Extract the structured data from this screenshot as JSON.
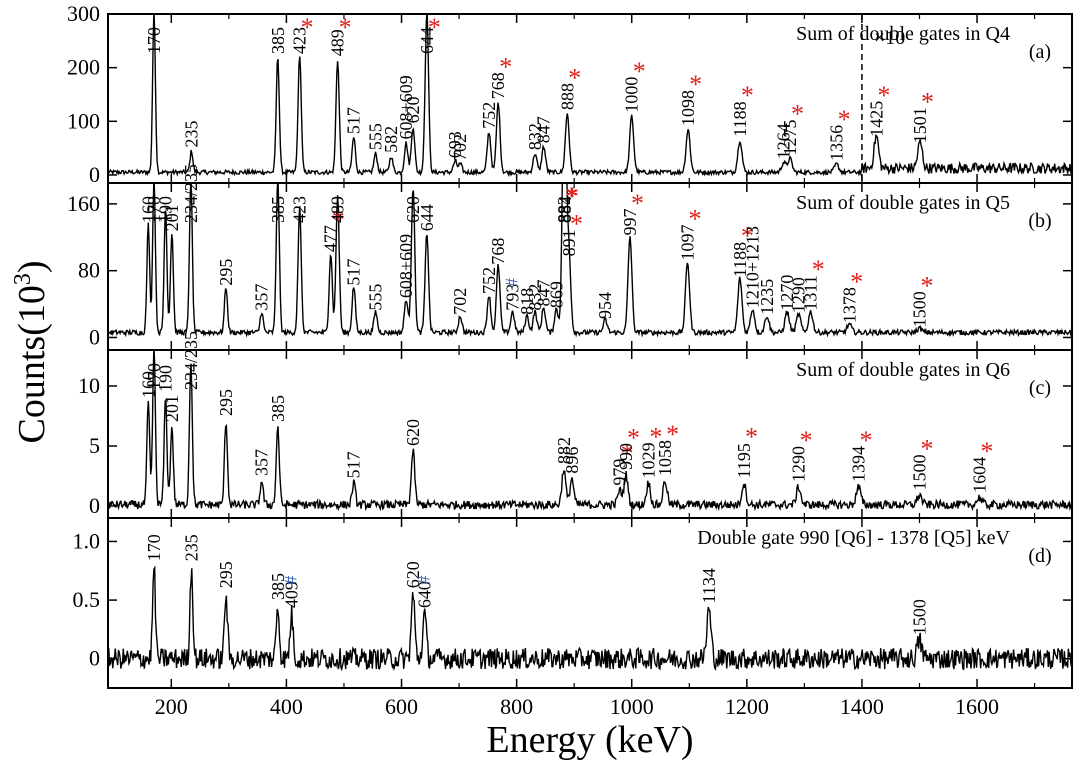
{
  "figure": {
    "xlabel": "Energy (keV)",
    "ylabel": "Counts(10",
    "ylabel_exp": "3",
    "ylabel_close": ")",
    "marker_star": "*",
    "marker_hash": "#",
    "colors": {
      "line": "#000000",
      "star": "#e0201b",
      "hash": "#3a63b8"
    }
  },
  "chart_data": [
    {
      "type": "line",
      "title": "Sum of double gates in Q4",
      "tag": "(a)",
      "xlim": [
        90,
        1765
      ],
      "ylim": [
        -15,
        300
      ],
      "xticks": [
        200,
        400,
        600,
        800,
        1000,
        1200,
        1400,
        1600
      ],
      "yticks": [
        0,
        100,
        200,
        300
      ],
      "ytick_labels": [
        "0",
        "100",
        "200",
        "300"
      ],
      "xtick_labels": [
        "",
        "",
        "",
        "",
        "",
        "",
        "",
        ""
      ],
      "baseline": 5,
      "noise": 4,
      "divider_x": 1400,
      "divider_label": "×10",
      "extra_lines": [],
      "peaks": [
        {
          "x": 170,
          "y": 300,
          "label": "170"
        },
        {
          "x": 235,
          "y": 40,
          "label": "235"
        },
        {
          "x": 385,
          "y": 215,
          "label": "385"
        },
        {
          "x": 423,
          "y": 220,
          "label": "423",
          "star": true
        },
        {
          "x": 489,
          "y": 210,
          "label": "489",
          "star": true
        },
        {
          "x": 517,
          "y": 65,
          "label": "517"
        },
        {
          "x": 555,
          "y": 35,
          "label": "555"
        },
        {
          "x": 582,
          "y": 30,
          "label": "582"
        },
        {
          "x": 608,
          "y": 55,
          "label": "608+609"
        },
        {
          "x": 620,
          "y": 85,
          "label": "620"
        },
        {
          "x": 644,
          "y": 300,
          "label": "644",
          "star": true
        },
        {
          "x": 693,
          "y": 20,
          "label": "693"
        },
        {
          "x": 702,
          "y": 15,
          "label": "702"
        },
        {
          "x": 752,
          "y": 75,
          "label": "752"
        },
        {
          "x": 768,
          "y": 130,
          "label": "768",
          "star": true
        },
        {
          "x": 832,
          "y": 35,
          "label": "832"
        },
        {
          "x": 847,
          "y": 48,
          "label": "847"
        },
        {
          "x": 888,
          "y": 110,
          "label": "888",
          "star": true
        },
        {
          "x": 1000,
          "y": 105,
          "label": "1000",
          "star": true
        },
        {
          "x": 1098,
          "y": 80,
          "label": "1098",
          "star": true
        },
        {
          "x": 1188,
          "y": 60,
          "label": "1188",
          "star": true
        },
        {
          "x": 1264,
          "y": 18,
          "label": "1264"
        },
        {
          "x": 1275,
          "y": 25,
          "label": "1275",
          "star": true
        },
        {
          "x": 1356,
          "y": 15,
          "label": "1356",
          "star": true
        },
        {
          "x": 1425,
          "y": 60,
          "label": "1425",
          "star": true
        },
        {
          "x": 1501,
          "y": 48,
          "label": "1501",
          "star": true
        }
      ]
    },
    {
      "type": "line",
      "title": "Sum of double gates in Q5",
      "tag": "(b)",
      "xlim": [
        90,
        1765
      ],
      "ylim": [
        -15,
        185
      ],
      "xticks": [
        200,
        400,
        600,
        800,
        1000,
        1200,
        1400,
        1600
      ],
      "yticks": [
        0,
        80,
        160
      ],
      "ytick_labels": [
        "0",
        "80",
        "160"
      ],
      "xtick_labels": [
        "",
        "",
        "",
        "",
        "",
        "",
        "",
        ""
      ],
      "baseline": 6,
      "noise": 3,
      "extra_lines": [],
      "peaks": [
        {
          "x": 160,
          "y": 130,
          "label": "160"
        },
        {
          "x": 170,
          "y": 185,
          "label": "170"
        },
        {
          "x": 190,
          "y": 150,
          "label": "190"
        },
        {
          "x": 201,
          "y": 120,
          "label": "201"
        },
        {
          "x": 234,
          "y": 185,
          "label": "234/235"
        },
        {
          "x": 295,
          "y": 55,
          "label": "295"
        },
        {
          "x": 357,
          "y": 25,
          "label": "357"
        },
        {
          "x": 385,
          "y": 185,
          "label": "385"
        },
        {
          "x": 423,
          "y": 150,
          "label": "423"
        },
        {
          "x": 477,
          "y": 95,
          "label": "477",
          "star": true
        },
        {
          "x": 489,
          "y": 165,
          "label": "489"
        },
        {
          "x": 517,
          "y": 55,
          "label": "517"
        },
        {
          "x": 555,
          "y": 25,
          "label": "555"
        },
        {
          "x": 608,
          "y": 40,
          "label": "608+609"
        },
        {
          "x": 620,
          "y": 175,
          "label": "620"
        },
        {
          "x": 644,
          "y": 120,
          "label": "644"
        },
        {
          "x": 702,
          "y": 20,
          "label": "702"
        },
        {
          "x": 752,
          "y": 45,
          "label": "752"
        },
        {
          "x": 768,
          "y": 80,
          "label": "768"
        },
        {
          "x": 793,
          "y": 25,
          "label": "793",
          "hash": true
        },
        {
          "x": 818,
          "y": 20,
          "label": "818"
        },
        {
          "x": 832,
          "y": 25,
          "label": "832"
        },
        {
          "x": 847,
          "y": 30,
          "label": "847"
        },
        {
          "x": 869,
          "y": 28,
          "label": "869"
        },
        {
          "x": 882,
          "y": 165,
          "label": "882",
          "star": true
        },
        {
          "x": 884,
          "y": 150,
          "label": "884",
          "star": true
        },
        {
          "x": 891,
          "y": 90,
          "label": "891",
          "star": true
        },
        {
          "x": 954,
          "y": 15,
          "label": "954"
        },
        {
          "x": 997,
          "y": 115,
          "label": "997",
          "star": true
        },
        {
          "x": 1097,
          "y": 85,
          "label": "1097",
          "star": true
        },
        {
          "x": 1188,
          "y": 65,
          "label": "1188",
          "star": true
        },
        {
          "x": 1210,
          "y": 28,
          "label": "1210+1213"
        },
        {
          "x": 1235,
          "y": 20,
          "label": "1235"
        },
        {
          "x": 1270,
          "y": 25,
          "label": "1270"
        },
        {
          "x": 1290,
          "y": 22,
          "label": "1290"
        },
        {
          "x": 1311,
          "y": 25,
          "label": "1311",
          "star": true
        },
        {
          "x": 1378,
          "y": 10,
          "label": "1378",
          "star": true
        },
        {
          "x": 1500,
          "y": 5,
          "label": "1500",
          "star": true
        }
      ]
    },
    {
      "type": "line",
      "title": "Sum of double gates in Q6",
      "tag": "(c)",
      "xlim": [
        90,
        1765
      ],
      "ylim": [
        -1,
        13
      ],
      "xticks": [
        200,
        400,
        600,
        800,
        1000,
        1200,
        1400,
        1600
      ],
      "yticks": [
        0,
        5,
        10
      ],
      "ytick_labels": [
        "0",
        "5",
        "10"
      ],
      "xtick_labels": [
        "",
        "",
        "",
        "",
        "",
        "",
        "",
        ""
      ],
      "baseline": 0.1,
      "noise": 0.35,
      "extra_lines": [],
      "peaks": [
        {
          "x": 160,
          "y": 8.5,
          "label": "160"
        },
        {
          "x": 170,
          "y": 13,
          "label": "170"
        },
        {
          "x": 190,
          "y": 9,
          "label": "190"
        },
        {
          "x": 201,
          "y": 6.5,
          "label": "201"
        },
        {
          "x": 234,
          "y": 12,
          "label": "234/235"
        },
        {
          "x": 295,
          "y": 7,
          "label": "295"
        },
        {
          "x": 357,
          "y": 2,
          "label": "357"
        },
        {
          "x": 385,
          "y": 6.5,
          "label": "385"
        },
        {
          "x": 517,
          "y": 1.8,
          "label": "517"
        },
        {
          "x": 620,
          "y": 4.5,
          "label": "620"
        },
        {
          "x": 882,
          "y": 3,
          "label": "882"
        },
        {
          "x": 896,
          "y": 2.2,
          "label": "896"
        },
        {
          "x": 979,
          "y": 1.2,
          "label": "979",
          "star": true
        },
        {
          "x": 990,
          "y": 2.5,
          "label": "990",
          "star": true
        },
        {
          "x": 1029,
          "y": 1.8,
          "label": "1029",
          "star": true
        },
        {
          "x": 1058,
          "y": 2,
          "label": "1058",
          "star": true
        },
        {
          "x": 1195,
          "y": 1.8,
          "label": "1195",
          "star": true
        },
        {
          "x": 1290,
          "y": 1.5,
          "label": "1290",
          "star": true
        },
        {
          "x": 1394,
          "y": 1.5,
          "label": "1394",
          "star": true
        },
        {
          "x": 1500,
          "y": 0.8,
          "label": "1500",
          "star": true
        },
        {
          "x": 1604,
          "y": 0.6,
          "label": "1604",
          "star": true
        }
      ]
    },
    {
      "type": "line",
      "title": "Double gate 990 [Q6] - 1378 [Q5] keV",
      "tag": "(d)",
      "xlim": [
        90,
        1765
      ],
      "ylim": [
        -0.25,
        1.2
      ],
      "xticks": [
        200,
        400,
        600,
        800,
        1000,
        1200,
        1400,
        1600
      ],
      "yticks": [
        0,
        0.5,
        1.0
      ],
      "ytick_labels": [
        "0",
        "0.5",
        "1.0"
      ],
      "xtick_labels": [
        "200",
        "400",
        "600",
        "800",
        "1000",
        "1200",
        "1400",
        "1600"
      ],
      "baseline": 0,
      "noise": 0.09,
      "extra_lines": [],
      "peaks": [
        {
          "x": 170,
          "y": 0.78,
          "label": "170"
        },
        {
          "x": 235,
          "y": 0.78,
          "label": "235"
        },
        {
          "x": 295,
          "y": 0.55,
          "label": "295"
        },
        {
          "x": 385,
          "y": 0.45,
          "label": "385"
        },
        {
          "x": 409,
          "y": 0.38,
          "label": "409",
          "hash": true
        },
        {
          "x": 620,
          "y": 0.55,
          "label": "620"
        },
        {
          "x": 640,
          "y": 0.38,
          "label": "640",
          "hash": true
        },
        {
          "x": 1134,
          "y": 0.42,
          "label": "1134"
        },
        {
          "x": 1500,
          "y": 0.15,
          "label": "1500"
        }
      ]
    }
  ]
}
